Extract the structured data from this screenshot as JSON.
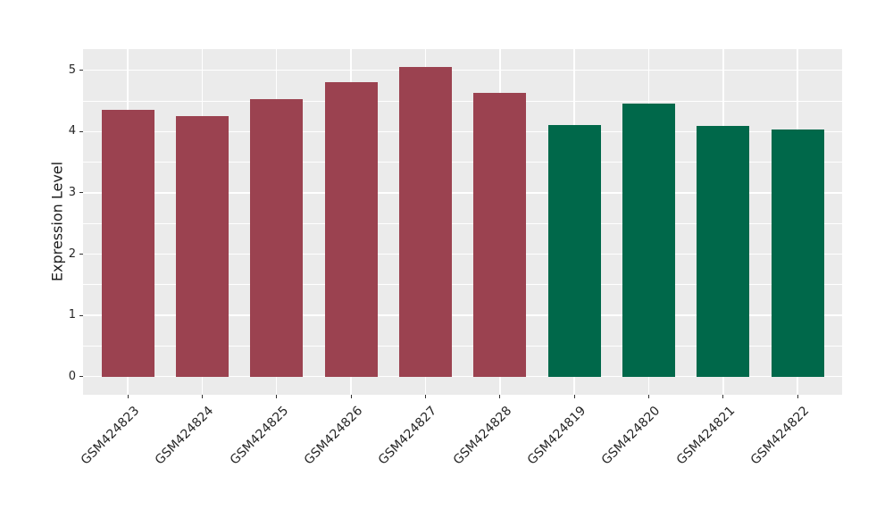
{
  "chart_data": {
    "type": "bar",
    "title": "",
    "xlabel": "",
    "ylabel": "Expression Level",
    "categories": [
      "GSM424823",
      "GSM424824",
      "GSM424825",
      "GSM424826",
      "GSM424827",
      "GSM424828",
      "GSM424819",
      "GSM424820",
      "GSM424821",
      "GSM424822"
    ],
    "values": [
      4.36,
      4.25,
      4.53,
      4.81,
      5.05,
      4.63,
      4.1,
      4.46,
      4.09,
      4.03
    ],
    "bar_colors": [
      "#9B4250",
      "#9B4250",
      "#9B4250",
      "#9B4250",
      "#9B4250",
      "#9B4250",
      "#00684A",
      "#00684A",
      "#00684A",
      "#00684A"
    ],
    "group_colors": {
      "first_group": "#9B4250",
      "second_group": "#00684A"
    },
    "ytick_labels": [
      "0",
      "1",
      "2",
      "3",
      "4",
      "5"
    ],
    "yticks": [
      0,
      1,
      2,
      3,
      4,
      5
    ],
    "minor_yticks": [
      0.5,
      1.5,
      2.5,
      3.5,
      4.5
    ],
    "ylim": [
      -0.3,
      5.35
    ],
    "grid": true,
    "legend_position": "none",
    "panel_background": "#EBEBEB",
    "gridline_color": "#FFFFFF",
    "axis_text_color": "#262626",
    "tick_color": "#333333",
    "bar_width_fraction": 0.71
  }
}
